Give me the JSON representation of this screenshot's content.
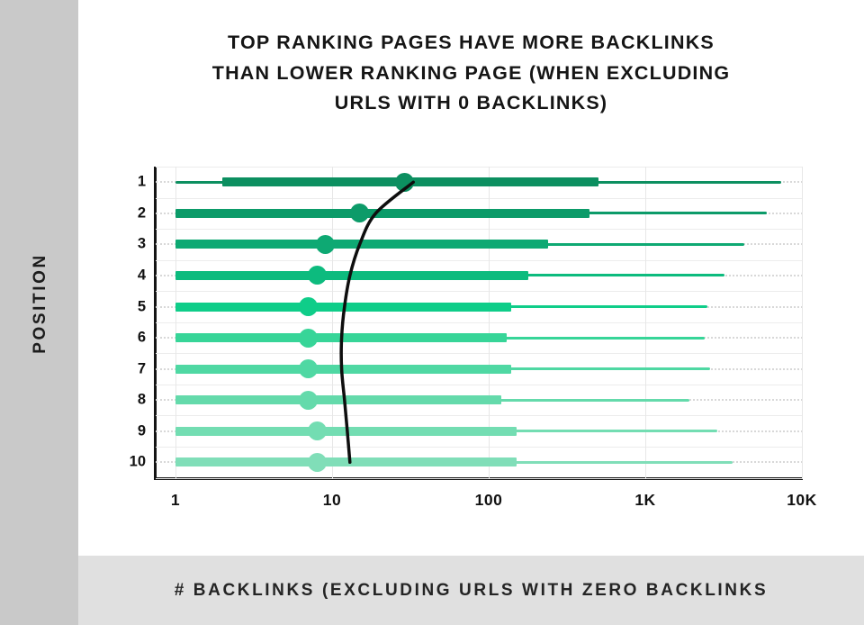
{
  "title": {
    "line1": "TOP RANKING PAGES HAVE MORE BACKLINKS",
    "line2": "THAN LOWER RANKING PAGE (WHEN EXCLUDING",
    "line3": "URLS WITH 0 BACKLINKS)"
  },
  "caption": "# BACKLINKS (EXCLUDING URLS WITH ZERO BACKLINKS",
  "colors": {
    "left_band": "#c9c9c9",
    "bottom_strip": "#e0e0e0",
    "background": "#ffffff",
    "axis": "#141414",
    "trend_line": "#0e0e0e",
    "grid_solid": "#ececec",
    "grid_dotted": "#d8d8d8"
  },
  "chart_data": {
    "type": "box",
    "orientation": "horizontal",
    "title": "TOP RANKING PAGES HAVE MORE BACKLINKS THAN LOWER RANKING PAGE (WHEN EXCLUDING URLS WITH 0 BACKLINKS)",
    "xlabel": "# BACKLINKS (EXCLUDING URLS WITH ZERO BACKLINKS",
    "ylabel": "POSITION",
    "x_scale": "log",
    "x_range": [
      1,
      10000
    ],
    "grid": "on",
    "x_ticks": [
      {
        "value": 1,
        "label": "1"
      },
      {
        "value": 10,
        "label": "10"
      },
      {
        "value": 100,
        "label": "100"
      },
      {
        "value": 1000,
        "label": "1K"
      },
      {
        "value": 10000,
        "label": "10K"
      }
    ],
    "rows": [
      {
        "position": "1",
        "min": 1,
        "q1": 2,
        "median": 29,
        "q3": 500,
        "max": 7400,
        "color": "#0c8f60"
      },
      {
        "position": "2",
        "min": 1,
        "q1": 1,
        "median": 15,
        "q3": 440,
        "max": 6000,
        "color": "#0c9b69"
      },
      {
        "position": "3",
        "min": 1,
        "q1": 1,
        "median": 9,
        "q3": 240,
        "max": 4300,
        "color": "#0ea973"
      },
      {
        "position": "4",
        "min": 1,
        "q1": 1,
        "median": 8,
        "q3": 180,
        "max": 3200,
        "color": "#0dbb7e"
      },
      {
        "position": "5",
        "min": 1,
        "q1": 1,
        "median": 7,
        "q3": 140,
        "max": 2500,
        "color": "#0fcd89"
      },
      {
        "position": "6",
        "min": 1,
        "q1": 1,
        "median": 7,
        "q3": 130,
        "max": 2400,
        "color": "#37d598"
      },
      {
        "position": "7",
        "min": 1,
        "q1": 1,
        "median": 7,
        "q3": 140,
        "max": 2600,
        "color": "#4fd8a3"
      },
      {
        "position": "8",
        "min": 1,
        "q1": 1,
        "median": 7,
        "q3": 120,
        "max": 1900,
        "color": "#64daab"
      },
      {
        "position": "9",
        "min": 1,
        "q1": 1,
        "median": 8,
        "q3": 150,
        "max": 2900,
        "color": "#73ddb2"
      },
      {
        "position": "10",
        "min": 1,
        "q1": 1,
        "median": 8,
        "q3": 150,
        "max": 3600,
        "color": "#80deb8"
      }
    ],
    "trend_curve": {
      "description": "smoothed median trend line (backlinks) per position 1-10",
      "values": [
        33,
        19,
        15,
        13,
        12,
        11.5,
        11.5,
        12,
        12.5,
        13
      ]
    }
  }
}
